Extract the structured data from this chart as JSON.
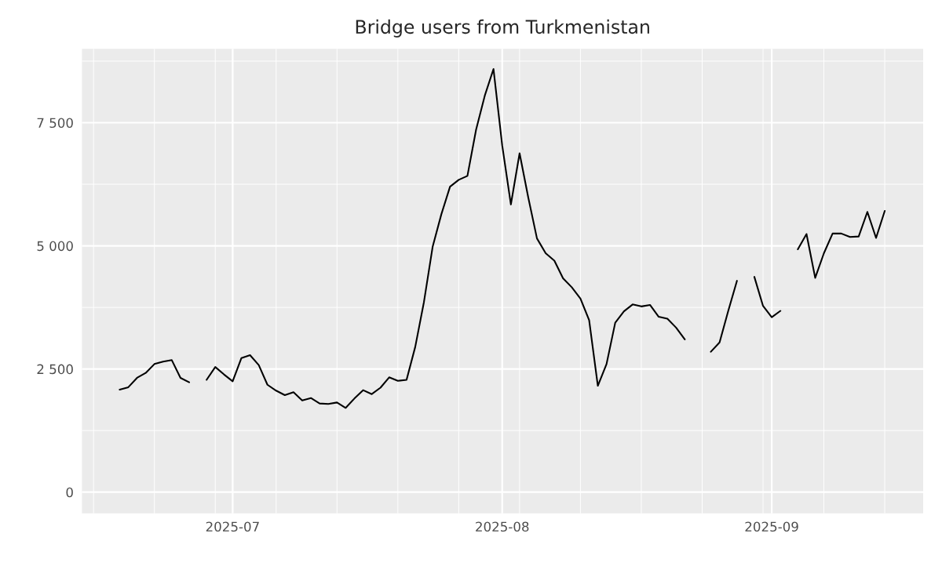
{
  "chart_data": {
    "type": "line",
    "title": "Bridge users from Turkmenistan",
    "x": [
      "2025-06-18",
      "2025-06-19",
      "2025-06-20",
      "2025-06-21",
      "2025-06-22",
      "2025-06-23",
      "2025-06-24",
      "2025-06-25",
      "2025-06-26",
      "2025-06-27",
      "2025-06-28",
      "2025-06-29",
      "2025-06-30",
      "2025-07-01",
      "2025-07-02",
      "2025-07-03",
      "2025-07-04",
      "2025-07-05",
      "2025-07-06",
      "2025-07-07",
      "2025-07-08",
      "2025-07-09",
      "2025-07-10",
      "2025-07-11",
      "2025-07-12",
      "2025-07-13",
      "2025-07-14",
      "2025-07-15",
      "2025-07-16",
      "2025-07-17",
      "2025-07-18",
      "2025-07-19",
      "2025-07-20",
      "2025-07-21",
      "2025-07-22",
      "2025-07-23",
      "2025-07-24",
      "2025-07-25",
      "2025-07-26",
      "2025-07-27",
      "2025-07-28",
      "2025-07-29",
      "2025-07-30",
      "2025-07-31",
      "2025-08-01",
      "2025-08-02",
      "2025-08-03",
      "2025-08-04",
      "2025-08-05",
      "2025-08-06",
      "2025-08-07",
      "2025-08-08",
      "2025-08-09",
      "2025-08-10",
      "2025-08-11",
      "2025-08-12",
      "2025-08-13",
      "2025-08-14",
      "2025-08-15",
      "2025-08-16",
      "2025-08-17",
      "2025-08-18",
      "2025-08-19",
      "2025-08-20",
      "2025-08-21",
      "2025-08-22",
      "2025-08-23",
      "2025-08-24",
      "2025-08-25",
      "2025-08-26",
      "2025-08-27",
      "2025-08-28",
      "2025-08-29",
      "2025-08-30",
      "2025-08-31",
      "2025-09-01",
      "2025-09-02",
      "2025-09-03",
      "2025-09-04",
      "2025-09-05",
      "2025-09-06",
      "2025-09-07",
      "2025-09-08",
      "2025-09-09",
      "2025-09-10",
      "2025-09-11",
      "2025-09-12",
      "2025-09-13",
      "2025-09-14"
    ],
    "series": [
      {
        "color": "#000000",
        "values": [
          2080,
          2130,
          2320,
          2420,
          2600,
          2650,
          2680,
          2320,
          2230,
          null,
          2280,
          2540,
          2390,
          2250,
          2720,
          2780,
          2580,
          2180,
          2060,
          1970,
          2030,
          1860,
          1910,
          1800,
          1790,
          1820,
          1710,
          1900,
          2070,
          1990,
          2120,
          2330,
          2260,
          2280,
          2950,
          3860,
          4980,
          5640,
          6200,
          6340,
          6420,
          7360,
          8050,
          8590,
          7040,
          5840,
          6880,
          5980,
          5150,
          4850,
          4700,
          4340,
          4160,
          3930,
          3490,
          2160,
          2600,
          3440,
          3670,
          3810,
          3770,
          3800,
          3560,
          3520,
          3340,
          3100,
          null,
          null,
          2850,
          3040,
          3680,
          4290,
          null,
          4370,
          3780,
          3550,
          3680,
          null,
          4930,
          5240,
          4350,
          4850,
          5250,
          5250,
          5180,
          5190,
          5690,
          5160,
          5710
        ]
      }
    ],
    "xlim": [
      "2025-06-13T16:00",
      "2025-09-18T10:00"
    ],
    "xticks": [
      {
        "value": "2025-07-01",
        "label": "2025-07"
      },
      {
        "value": "2025-08-01",
        "label": "2025-08"
      },
      {
        "value": "2025-09-01",
        "label": "2025-09"
      }
    ],
    "ylim": [
      -430,
      9000
    ],
    "yticks": [
      0,
      {
        "value": 2500,
        "label": "2 500"
      },
      {
        "value": 5000,
        "label": "5 000"
      },
      {
        "value": 7500,
        "label": "7 500"
      }
    ],
    "grid": true,
    "line_style": "solid",
    "marker": "none"
  }
}
